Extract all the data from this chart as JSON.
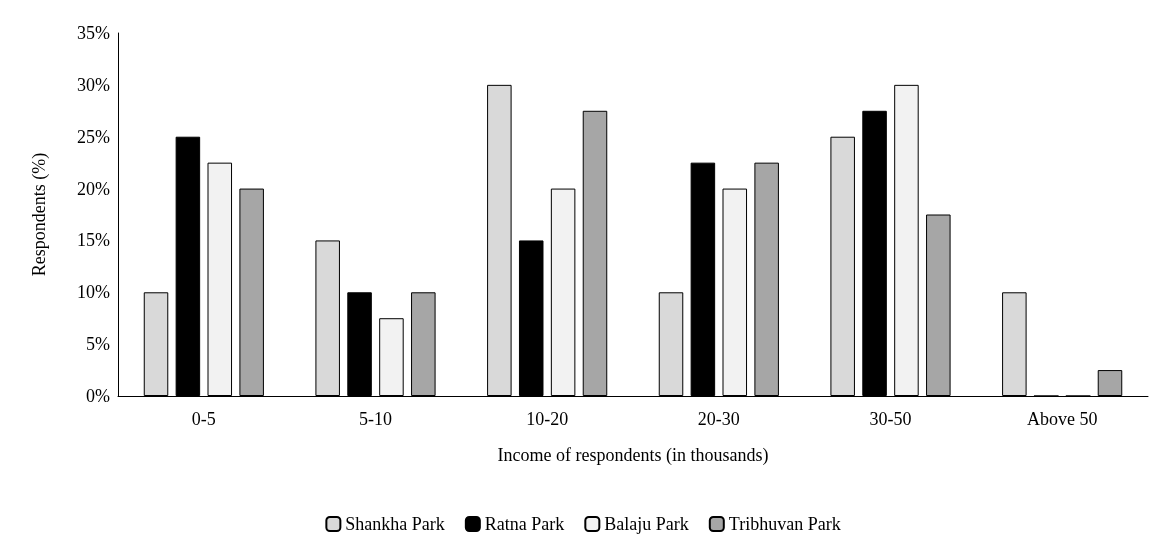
{
  "chart_data": {
    "type": "bar",
    "xlabel": "Income of respondents (in thousands)",
    "ylabel": "Respondents (%)",
    "categories": [
      "0-5",
      "5-10",
      "10-20",
      "20-30",
      "30-50",
      "Above 50"
    ],
    "series": [
      {
        "name": "Shankha Park",
        "color": "#d9d9d9",
        "values": [
          10,
          15,
          30,
          10,
          25,
          10
        ]
      },
      {
        "name": "Ratna Park",
        "color": "#000000",
        "values": [
          25,
          10,
          15,
          22.5,
          27.5,
          0
        ]
      },
      {
        "name": "Balaju Park",
        "color": "#f2f2f2",
        "values": [
          22.5,
          7.5,
          20,
          20,
          30,
          0
        ]
      },
      {
        "name": "Tribhuvan Park",
        "color": "#a6a6a6",
        "values": [
          20,
          10,
          27.5,
          22.5,
          17.5,
          2.5
        ]
      }
    ],
    "ylim": [
      0,
      35
    ],
    "yticks": [
      {
        "value": 0,
        "label": "0%"
      },
      {
        "value": 5,
        "label": "5%"
      },
      {
        "value": 10,
        "label": "10%"
      },
      {
        "value": 15,
        "label": "15%"
      },
      {
        "value": 20,
        "label": "20%"
      },
      {
        "value": 25,
        "label": "25%"
      },
      {
        "value": 30,
        "label": "30%"
      },
      {
        "value": 35,
        "label": "35%"
      }
    ],
    "grid": false,
    "legend": "bottom"
  }
}
